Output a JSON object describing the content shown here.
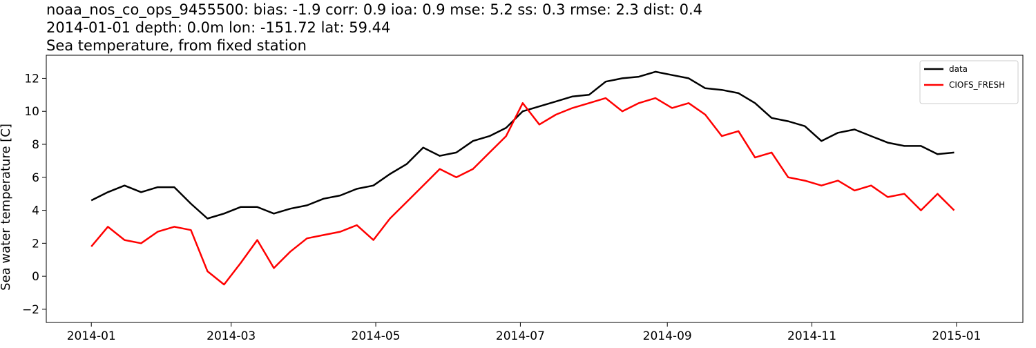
{
  "chart_data": {
    "type": "line",
    "title_lines": [
      "noaa_nos_co_ops_9455500: bias: -1.9  corr: 0.9  ioa: 0.9  mse: 5.2  ss: 0.3  rmse: 2.3  dist: 0.4",
      "2014-01-01 depth: 0.0m lon: -151.72 lat: 59.44",
      "Sea temperature, from fixed station"
    ],
    "ylabel": "Sea water temperature [C]",
    "x": [
      16071,
      16078,
      16085,
      16092,
      16099,
      16106,
      16113,
      16120,
      16127,
      16134,
      16141,
      16148,
      16155,
      16162,
      16169,
      16176,
      16183,
      16190,
      16197,
      16204,
      16211,
      16218,
      16225,
      16232,
      16239,
      16246,
      16253,
      16260,
      16267,
      16274,
      16281,
      16288,
      16295,
      16302,
      16309,
      16316,
      16323,
      16330,
      16337,
      16344,
      16351,
      16358,
      16365,
      16372,
      16379,
      16386,
      16393,
      16400,
      16407,
      16414,
      16421,
      16428,
      16435
    ],
    "series": [
      {
        "name": "data",
        "color": "#000000",
        "values": [
          4.6,
          5.1,
          5.5,
          5.1,
          5.4,
          5.4,
          4.4,
          3.5,
          3.8,
          4.2,
          4.2,
          3.8,
          4.1,
          4.3,
          4.7,
          4.9,
          5.3,
          5.5,
          6.2,
          6.8,
          7.8,
          7.3,
          7.5,
          8.2,
          8.5,
          9.0,
          10.0,
          10.3,
          10.6,
          10.9,
          11.0,
          11.8,
          12.0,
          12.1,
          12.4,
          12.2,
          12.0,
          11.4,
          11.3,
          11.1,
          10.5,
          9.6,
          9.4,
          9.1,
          8.2,
          8.7,
          8.9,
          8.5,
          8.1,
          7.9,
          7.9,
          7.4,
          7.5
        ]
      },
      {
        "name": "CIOFS_FRESH",
        "color": "#ff0000",
        "values": [
          1.8,
          3.0,
          2.2,
          2.0,
          2.7,
          3.0,
          2.8,
          0.3,
          -0.5,
          0.8,
          2.2,
          0.5,
          1.5,
          2.3,
          2.5,
          2.7,
          3.1,
          2.2,
          3.5,
          4.5,
          5.5,
          6.5,
          6.0,
          6.5,
          7.5,
          8.5,
          10.5,
          9.2,
          9.8,
          10.2,
          10.5,
          10.8,
          10.0,
          10.5,
          10.8,
          10.2,
          10.5,
          9.8,
          8.5,
          8.8,
          7.2,
          7.5,
          6.0,
          5.8,
          5.5,
          5.8,
          5.2,
          5.5,
          4.8,
          5.0,
          4.0,
          5.0,
          4.0
        ]
      }
    ],
    "xlim": [
      16052,
      16464
    ],
    "xticks": [
      {
        "value": 16071,
        "label": "2014-01"
      },
      {
        "value": 16130,
        "label": "2014-03"
      },
      {
        "value": 16191,
        "label": "2014-05"
      },
      {
        "value": 16252,
        "label": "2014-07"
      },
      {
        "value": 16314,
        "label": "2014-09"
      },
      {
        "value": 16375,
        "label": "2014-11"
      },
      {
        "value": 16436,
        "label": "2015-01"
      }
    ],
    "ylim": [
      -2.8,
      13.4
    ],
    "yticks": [
      {
        "value": -2,
        "label": "−2"
      },
      0,
      2,
      4,
      6,
      8,
      10,
      12
    ],
    "legend": "upper right"
  }
}
